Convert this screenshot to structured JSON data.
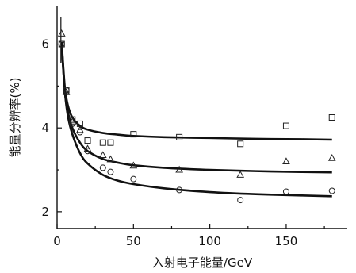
{
  "chart_data": {
    "type": "scatter",
    "title": "",
    "xlabel": "入射电子能量/GeV",
    "ylabel": "能量分辨率(%)",
    "xlim": [
      0,
      190
    ],
    "ylim": [
      1.6,
      6.9
    ],
    "xticks": [
      0,
      50,
      100,
      150
    ],
    "yticks": [
      2,
      4,
      6
    ],
    "grid": false,
    "legend": "none",
    "series": [
      {
        "marker": "square",
        "points": [
          [
            3,
            6.0
          ],
          [
            6,
            4.9
          ],
          [
            10,
            4.2
          ],
          [
            15,
            4.1
          ],
          [
            20,
            3.7
          ],
          [
            30,
            3.65
          ],
          [
            35,
            3.65
          ],
          [
            50,
            3.85
          ],
          [
            80,
            3.78
          ],
          [
            120,
            3.62
          ],
          [
            150,
            4.05
          ],
          [
            180,
            4.25
          ]
        ],
        "fit": [
          [
            3,
            6.05
          ],
          [
            5,
            5.0
          ],
          [
            7,
            4.55
          ],
          [
            10,
            4.25
          ],
          [
            15,
            4.05
          ],
          [
            20,
            3.96
          ],
          [
            30,
            3.88
          ],
          [
            40,
            3.84
          ],
          [
            50,
            3.81
          ],
          [
            70,
            3.78
          ],
          [
            100,
            3.76
          ],
          [
            130,
            3.74
          ],
          [
            160,
            3.73
          ],
          [
            180,
            3.72
          ]
        ]
      },
      {
        "marker": "triangle",
        "points": [
          [
            3,
            6.25
          ],
          [
            6,
            4.85
          ],
          [
            10,
            4.15
          ],
          [
            15,
            3.95
          ],
          [
            20,
            3.5
          ],
          [
            30,
            3.35
          ],
          [
            35,
            3.25
          ],
          [
            50,
            3.1
          ],
          [
            80,
            3.0
          ],
          [
            120,
            2.88
          ],
          [
            150,
            3.2
          ],
          [
            180,
            3.28
          ]
        ],
        "fit": [
          [
            3,
            6.0
          ],
          [
            5,
            4.9
          ],
          [
            7,
            4.4
          ],
          [
            10,
            4.0
          ],
          [
            15,
            3.65
          ],
          [
            20,
            3.45
          ],
          [
            30,
            3.26
          ],
          [
            40,
            3.17
          ],
          [
            50,
            3.11
          ],
          [
            70,
            3.05
          ],
          [
            100,
            3.0
          ],
          [
            130,
            2.97
          ],
          [
            160,
            2.95
          ],
          [
            180,
            2.94
          ]
        ]
      },
      {
        "marker": "circle",
        "points": [
          [
            3,
            6.0
          ],
          [
            6,
            4.9
          ],
          [
            10,
            4.1
          ],
          [
            15,
            3.9
          ],
          [
            20,
            3.45
          ],
          [
            30,
            3.05
          ],
          [
            35,
            2.95
          ],
          [
            50,
            2.78
          ],
          [
            80,
            2.52
          ],
          [
            120,
            2.28
          ],
          [
            150,
            2.48
          ],
          [
            180,
            2.5
          ]
        ],
        "fit": [
          [
            3,
            6.0
          ],
          [
            5,
            4.9
          ],
          [
            7,
            4.3
          ],
          [
            10,
            3.85
          ],
          [
            15,
            3.4
          ],
          [
            20,
            3.15
          ],
          [
            30,
            2.88
          ],
          [
            40,
            2.74
          ],
          [
            50,
            2.66
          ],
          [
            70,
            2.56
          ],
          [
            100,
            2.47
          ],
          [
            130,
            2.42
          ],
          [
            160,
            2.39
          ],
          [
            180,
            2.37
          ]
        ]
      }
    ]
  }
}
